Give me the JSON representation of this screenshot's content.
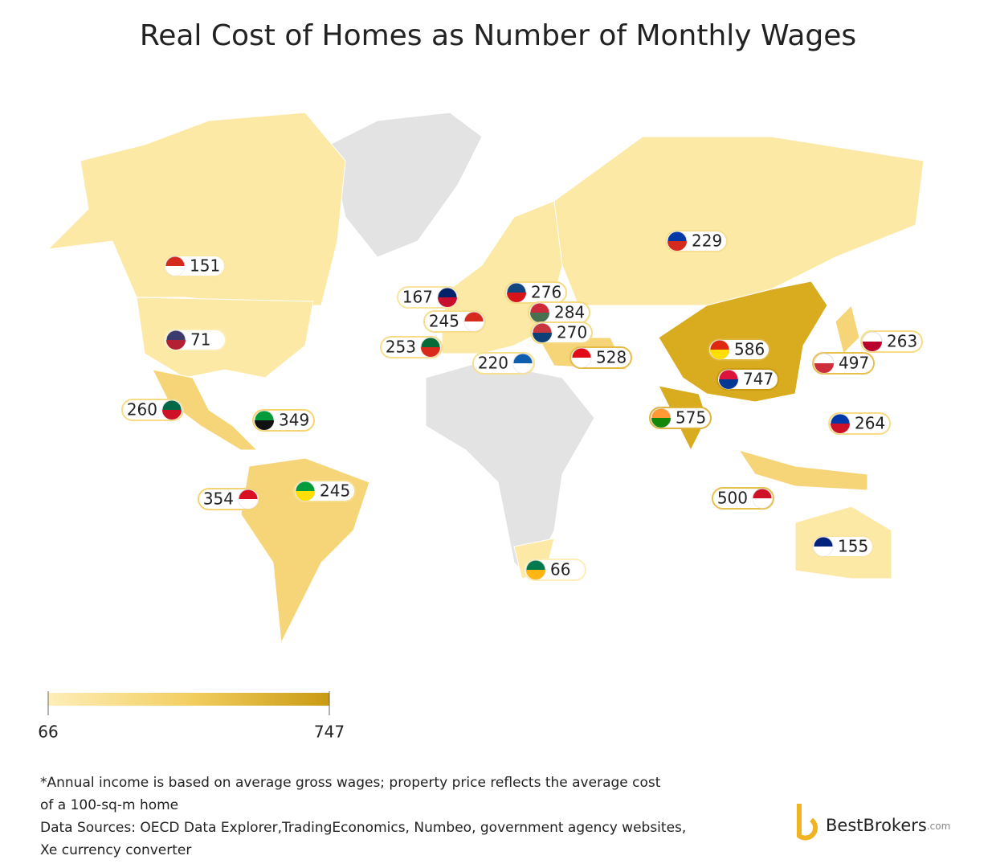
{
  "title": "Real Cost of Homes as Number of Monthly Wages",
  "markers": [
    {
      "value": 151
    },
    {
      "value": 71
    },
    {
      "value": 260
    },
    {
      "value": 349
    },
    {
      "value": 354
    },
    {
      "value": 245
    },
    {
      "value": 167
    },
    {
      "value": 245
    },
    {
      "value": 253
    },
    {
      "value": 276
    },
    {
      "value": 284
    },
    {
      "value": 270
    },
    {
      "value": 220
    },
    {
      "value": 528
    },
    {
      "value": 229
    },
    {
      "value": 586
    },
    {
      "value": 747
    },
    {
      "value": 575
    },
    {
      "value": 263
    },
    {
      "value": 497
    },
    {
      "value": 264
    },
    {
      "value": 500
    },
    {
      "value": 155
    },
    {
      "value": 66
    }
  ],
  "legend": {
    "lim": [
      66,
      747
    ],
    "ticks": [
      66,
      747
    ],
    "colors": [
      "#fdeeb8",
      "#f3cf62",
      "#c99a12"
    ]
  },
  "notes": [
    "*Annual income is based on average gross wages; property price reflects the average cost",
    "of a 100-sq-m home",
    "Data Sources: OECD Data Explorer,TradingEconomics, Numbeo, government agency websites,",
    "Xe currency converter"
  ],
  "logo": {
    "name": "BestBrokers",
    "suffix": ".com"
  }
}
